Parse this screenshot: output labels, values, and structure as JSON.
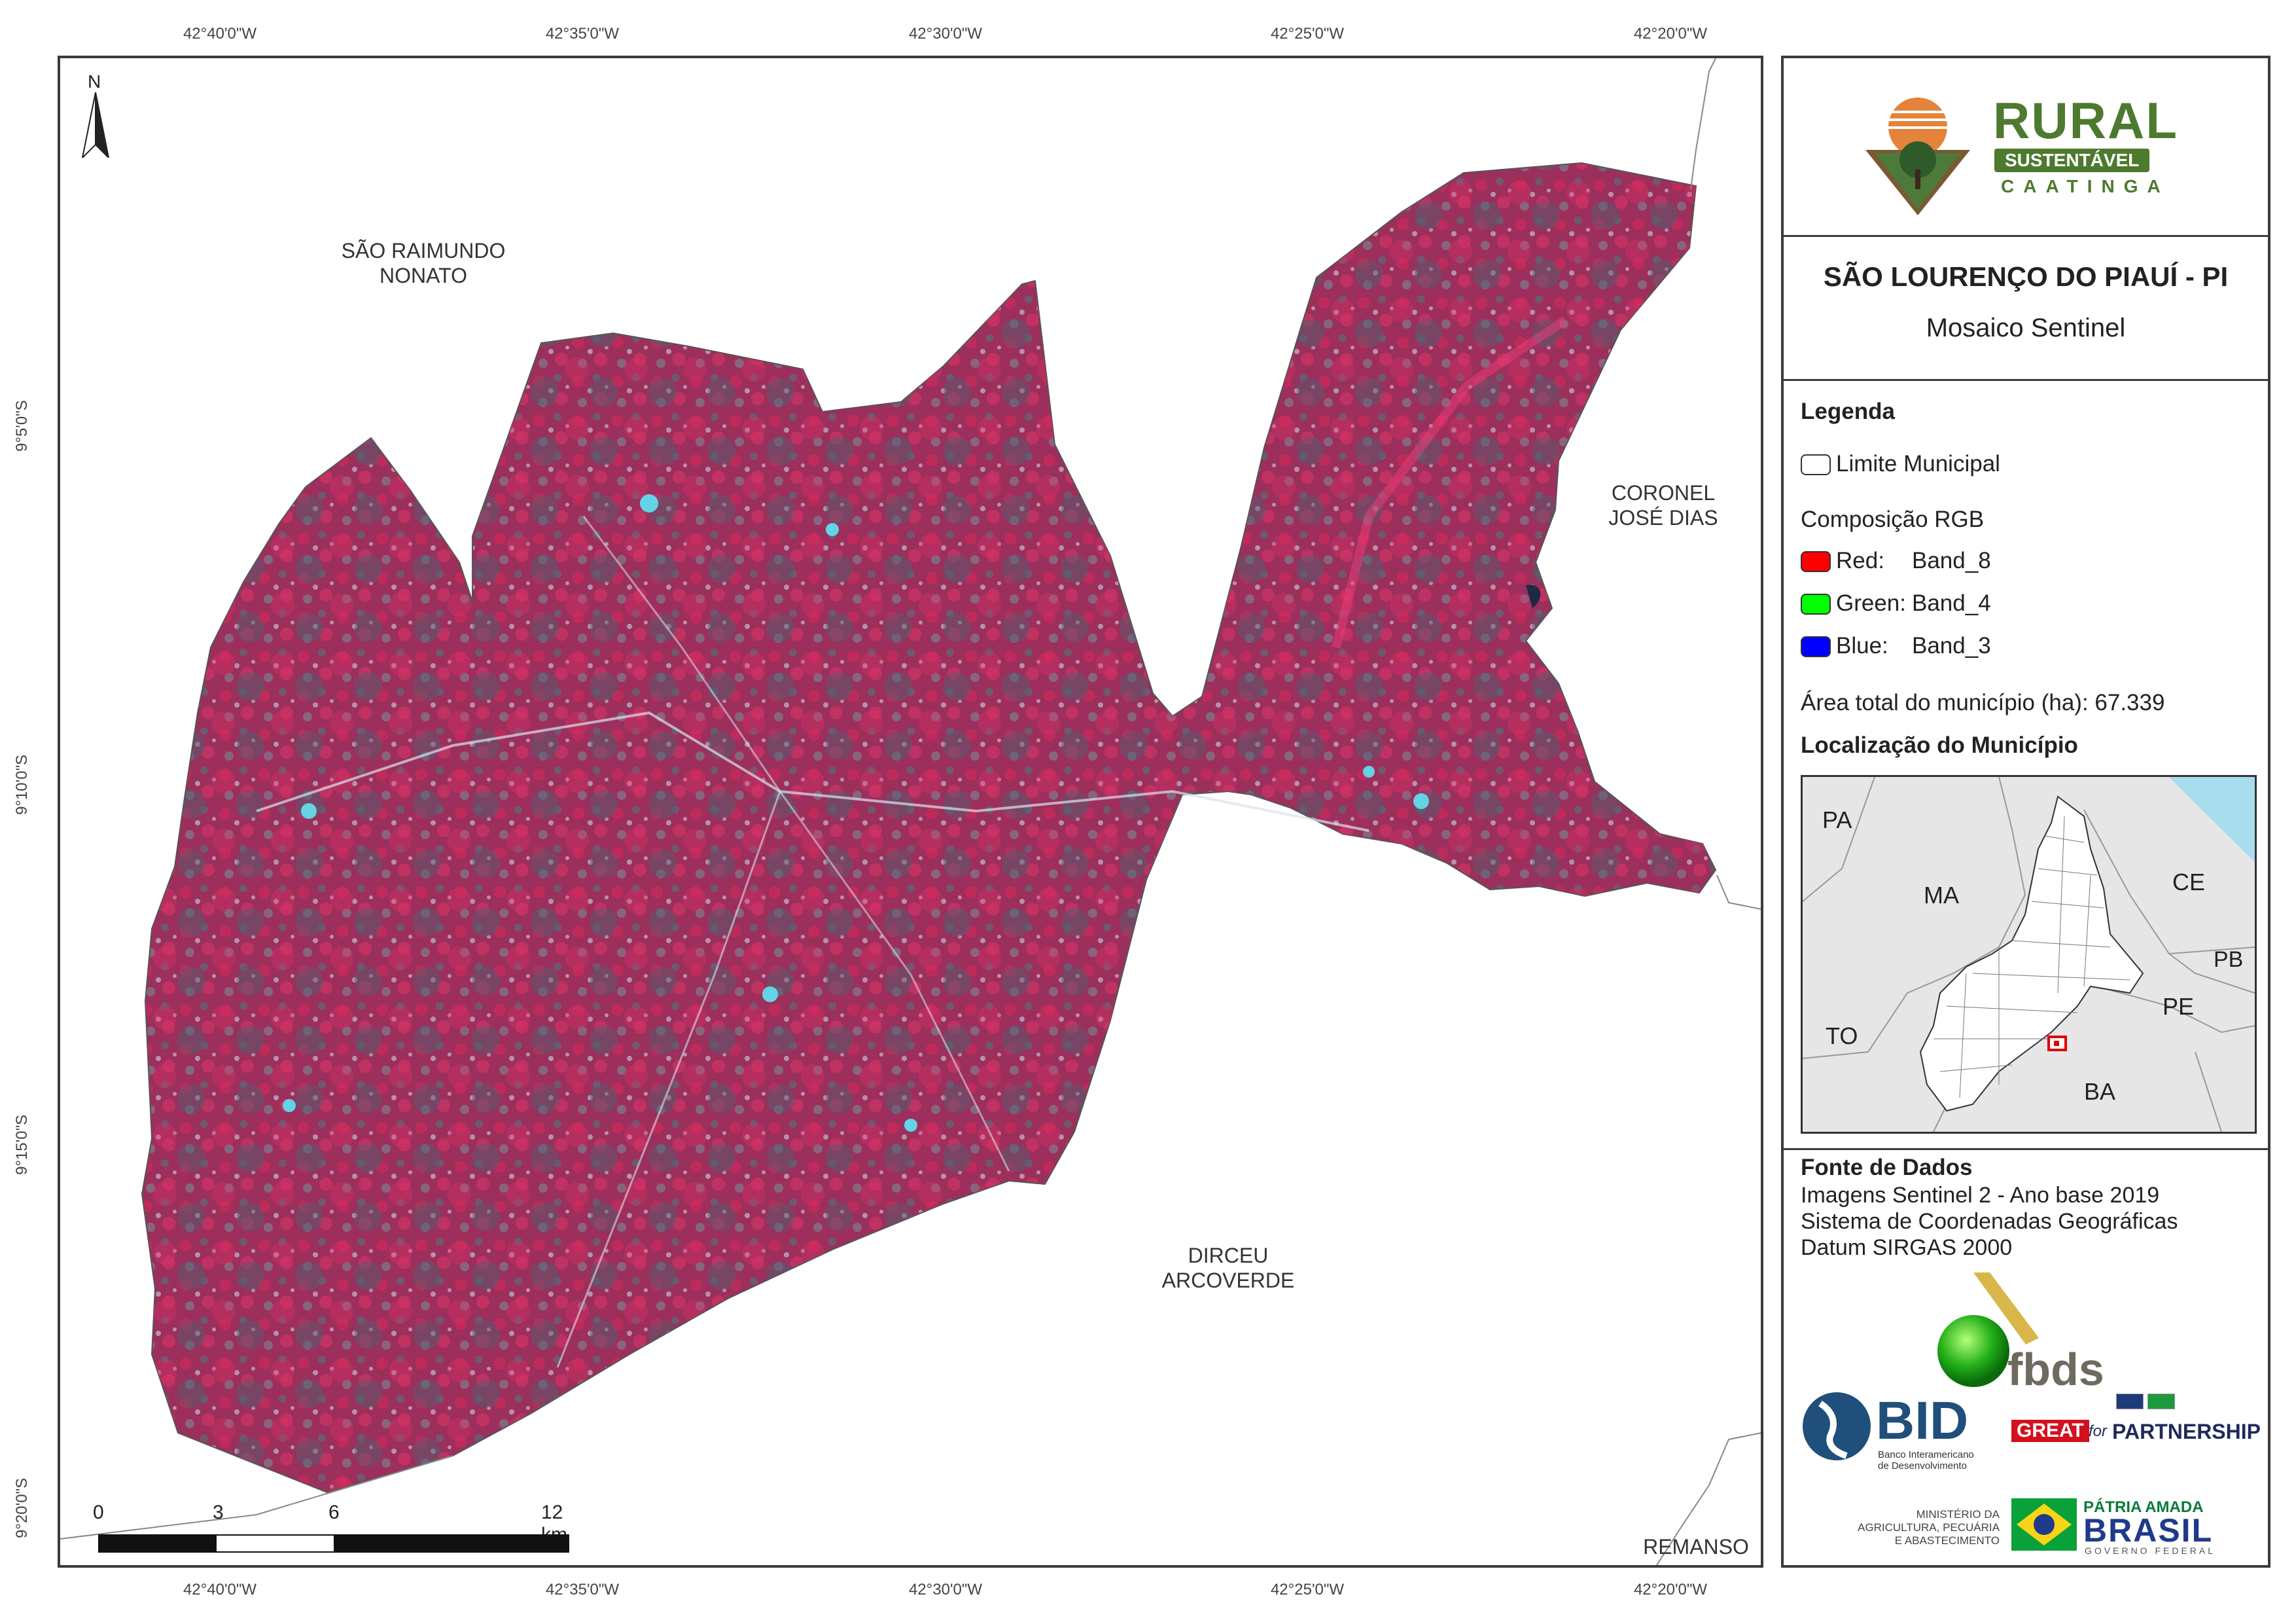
{
  "coords": {
    "top": [
      "42°40'0\"W",
      "42°35'0\"W",
      "42°30'0\"W",
      "42°25'0\"W",
      "42°20'0\"W"
    ],
    "bottom": [
      "42°40'0\"W",
      "42°35'0\"W",
      "42°30'0\"W",
      "42°25'0\"W",
      "42°20'0\"W"
    ],
    "left": [
      "9°5'0\"S",
      "9°10'0\"S",
      "9°15'0\"S",
      "9°20'0\"S"
    ]
  },
  "map": {
    "north": "N",
    "neighbors": {
      "sao_raimundo": "SÃO RAIMUNDO\nNONATO",
      "coronel": "CORONEL\nJOSÉ DIAS",
      "dirceu": "DIRCEU\nARCOVERDE",
      "remanso": "REMANSO"
    },
    "scalebar": {
      "labels": [
        "0",
        "3",
        "6",
        "12 km"
      ]
    }
  },
  "panel": {
    "logo": {
      "title": "RURAL",
      "ribbon": "SUSTENTÁVEL",
      "sub": "CAATINGA"
    },
    "title": "SÃO LOURENÇO DO PIAUÍ - PI",
    "subtitle": "Mosaico Sentinel",
    "legend": {
      "heading": "Legenda",
      "limit": "Limite Municipal",
      "rgb_heading": "Composição RGB",
      "items": [
        {
          "label": "Red:",
          "band": "Band_8",
          "color": "#ff0000"
        },
        {
          "label": "Green:",
          "band": "Band_4",
          "color": "#00ff00"
        },
        {
          "label": "Blue:",
          "band": "Band_3",
          "color": "#0000ff"
        }
      ],
      "area": "Área total do município (ha): 67.339"
    },
    "location": {
      "heading": "Localização do Município",
      "states": [
        "PA",
        "MA",
        "CE",
        "PB",
        "PE",
        "TO",
        "BA"
      ]
    },
    "sources": {
      "heading": "Fonte de Dados",
      "lines": [
        "Imagens Sentinel 2 - Ano base 2019",
        "Sistema de Coordenadas Geográficas",
        "Datum SIRGAS 2000"
      ]
    },
    "logos": {
      "fbds": "fbds",
      "bid": "BID",
      "bid_sub": "Banco Interamericano\nde Desenvolvimento",
      "great": "GREAT",
      "great_for": "for",
      "partnership": "PARTNERSHIP",
      "ministry": "MINISTÉRIO DA\nAGRICULTURA, PECUÁRIA\nE ABASTECIMENTO",
      "patria": "PÁTRIA AMADA",
      "brasil": "BRASIL",
      "gov": "GOVERNO FEDERAL"
    }
  }
}
